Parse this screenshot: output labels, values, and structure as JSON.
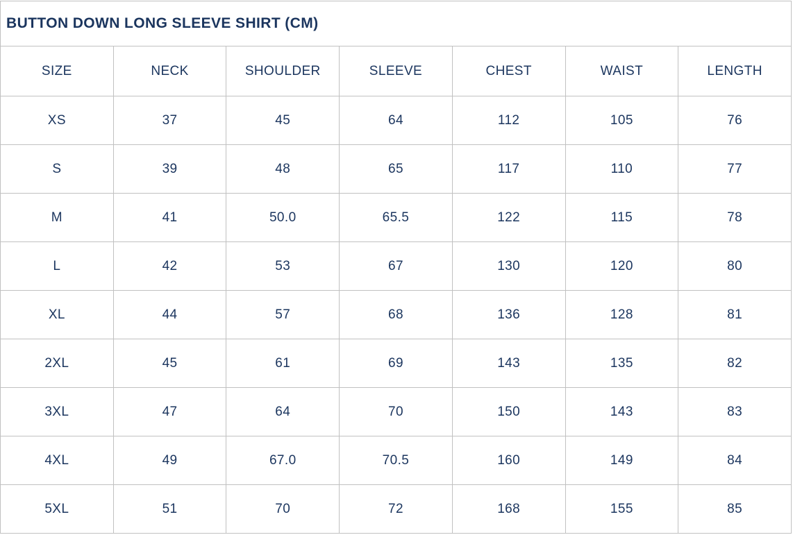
{
  "title": "BUTTON DOWN LONG SLEEVE SHIRT (CM)",
  "table": {
    "columns": [
      "SIZE",
      "NECK",
      "SHOULDER",
      "SLEEVE",
      "CHEST",
      "WAIST",
      "LENGTH"
    ],
    "rows": [
      [
        "XS",
        "37",
        "45",
        "64",
        "112",
        "105",
        "76"
      ],
      [
        "S",
        "39",
        "48",
        "65",
        "117",
        "110",
        "77"
      ],
      [
        "M",
        "41",
        "50.0",
        "65.5",
        "122",
        "115",
        "78"
      ],
      [
        "L",
        "42",
        "53",
        "67",
        "130",
        "120",
        "80"
      ],
      [
        "XL",
        "44",
        "57",
        "68",
        "136",
        "128",
        "81"
      ],
      [
        "2XL",
        "45",
        "61",
        "69",
        "143",
        "135",
        "82"
      ],
      [
        "3XL",
        "47",
        "64",
        "70",
        "150",
        "143",
        "83"
      ],
      [
        "4XL",
        "49",
        "67.0",
        "70.5",
        "160",
        "149",
        "84"
      ],
      [
        "5XL",
        "51",
        "70",
        "72",
        "168",
        "155",
        "85"
      ]
    ]
  },
  "colors": {
    "text": "#1b355e",
    "border": "#c1c1c1",
    "background": "#ffffff"
  }
}
